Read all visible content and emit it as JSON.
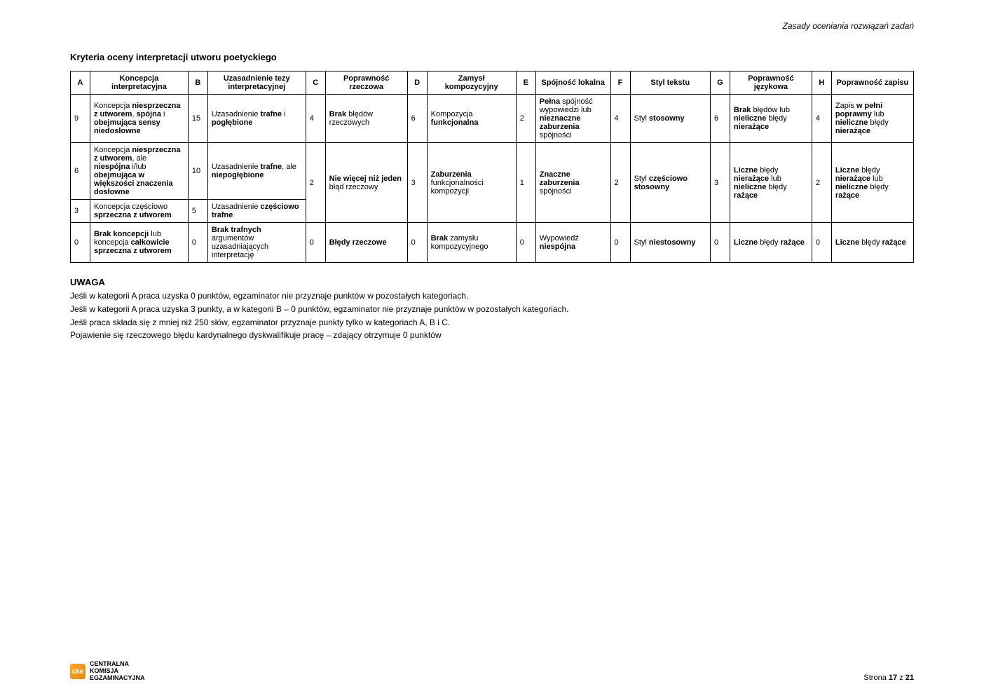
{
  "header_right": "Zasady oceniania rozwiązań zadań",
  "title": "Kryteria oceny interpretacji utworu poetyckiego",
  "cols": {
    "A": "A",
    "A_label": "Koncepcja interpretacyjna",
    "B": "B",
    "B_label": "Uzasadnienie tezy interpretacyjnej",
    "C": "C",
    "C_label": "Poprawność rzeczowa",
    "D": "D",
    "D_label": "Zamysł kompozycyjny",
    "E": "E",
    "E_label": "Spójność lokalna",
    "F": "F",
    "F_label": "Styl tekstu",
    "G": "G",
    "G_label": "Poprawność językowa",
    "H": "H",
    "H_label": "Poprawność zapisu"
  },
  "r1": {
    "A_pt": "9",
    "A_txt_pre": "Koncepcja ",
    "A_b1": "niesprzeczna z utworem",
    "A_mid": ", ",
    "A_b2": "spójna",
    "A_post": " i ",
    "A_b3": "obejmująca sensy niedosłowne",
    "B_pt": "15",
    "B_txt_pre": "Uzasadnienie ",
    "B_b1": "trafne",
    "B_post": " i ",
    "B_b2": "pogłębione",
    "C_pt": "4",
    "C_b1": "Brak",
    "C_post": " błędów rzeczowych",
    "D_pt": "6",
    "D_pre": "Kompozycja ",
    "D_b1": "funkcjonalna",
    "E_pt": "2",
    "E_b1": "Pełna",
    "E_post": " spójność wypowiedzi lub ",
    "E_b2": "nieznaczne zaburzenia",
    "E_post2": " spójności",
    "F_pt": "4",
    "F_pre": "Styl ",
    "F_b1": "stosowny",
    "G_pt": "6",
    "G_b1": "Brak",
    "G_post": " błędów lub ",
    "G_b2": "nieliczne",
    "G_post2": " błędy ",
    "G_b3": "nierażące",
    "H_pt": "4",
    "H_pre": "Zapis ",
    "H_b1": "w pełni poprawny",
    "H_post": " lub ",
    "H_b2": "nieliczne",
    "H_post2": " błędy ",
    "H_b3": "nierażące"
  },
  "r2": {
    "A_pt": "6",
    "A_pre": "Koncepcja ",
    "A_b1": "niesprzeczna z utworem",
    "A_mid": ", ale ",
    "A_b2": "niespójna",
    "A_post": " i/lub ",
    "A_b3": "obejmująca w większości znaczenia dosłowne",
    "B_pt": "10",
    "B_pre": "Uzasadnienie ",
    "B_b1": "trafne",
    "B_mid": ", ale ",
    "B_b2": "niepogłębione",
    "C_pt": "2",
    "C_b1": "Nie więcej niż jeden",
    "C_post": " błąd rzeczowy",
    "D_pt": "3",
    "D_b1": "Zaburzenia",
    "D_post": " funkcjonalności kompozycji",
    "E_pt": "1",
    "E_b1": "Znaczne zaburzenia",
    "E_post": " spójności",
    "F_pt": "2",
    "F_pre": "Styl ",
    "F_b1": "częściowo stosowny",
    "G_pt": "3",
    "G_b1": "Liczne",
    "G_post": " błędy ",
    "G_b2": "nierażące",
    "G_post2": " lub ",
    "G_b3": "nieliczne",
    "G_post3": " błędy ",
    "G_b4": "rażące",
    "H_pt": "2",
    "H_b1": "Liczne",
    "H_post": " błędy ",
    "H_b2": "nierażące",
    "H_post2": " lub ",
    "H_b3": "nieliczne",
    "H_post3": " błędy ",
    "H_b4": "rażące"
  },
  "r3": {
    "A_pt": "3",
    "A_pre": "Koncepcja częściowo ",
    "A_b1": "sprzeczna z utworem",
    "B_pt": "5",
    "B_pre": "Uzasadnienie ",
    "B_b1": "częściowo trafne"
  },
  "r4": {
    "A_pt": "0",
    "A_b1": "Brak koncepcji",
    "A_post": " lub koncepcja ",
    "A_b2": "całkowicie sprzeczna z utworem",
    "B_pt": "0",
    "B_b1": "Brak trafnych",
    "B_post": " argumentów uzasadniających interpretację",
    "C_pt": "0",
    "C_b1": "Błędy rzeczowe",
    "D_pt": "0",
    "D_b1": "Brak",
    "D_post": " zamysłu kompozycyjnego",
    "E_pt": "0",
    "E_pre": "Wypowiedź ",
    "E_b1": "niespójna",
    "F_pt": "0",
    "F_pre": "Styl ",
    "F_b1": "niestosowny",
    "G_pt": "0",
    "G_b1": "Liczne",
    "G_post": " błędy ",
    "G_b2": "rażące",
    "H_pt": "0",
    "H_b1": "Liczne",
    "H_post": " błędy ",
    "H_b2": "rażące"
  },
  "uwaga": {
    "h": "UWAGA",
    "p1": "Jeśli w kategorii A praca uzyska 0 punktów, egzaminator nie przyznaje punktów w pozostałych kategoriach.",
    "p2": "Jeśli w kategorii A praca uzyska 3 punkty, a w kategorii B – 0 punktów, egzaminator nie przyznaje punktów w pozostałych kategoriach.",
    "p3": "Jeśli praca składa się z mniej niż 250 słów, egzaminator przyznaje punkty tylko w kategoriach A, B i C.",
    "p4": "Pojawienie się rzeczowego błędu kardynalnego dyskwalifikuje pracę – zdający otrzymuje 0 punktów"
  },
  "footer": {
    "logo_abbr": "cke",
    "logo_line1": "CENTRALNA",
    "logo_line2": "KOMISJA",
    "logo_line3": "EGZAMINACYJNA",
    "page_pre": "Strona ",
    "page_b": "17",
    "page_mid": " z ",
    "page_total": "21"
  }
}
